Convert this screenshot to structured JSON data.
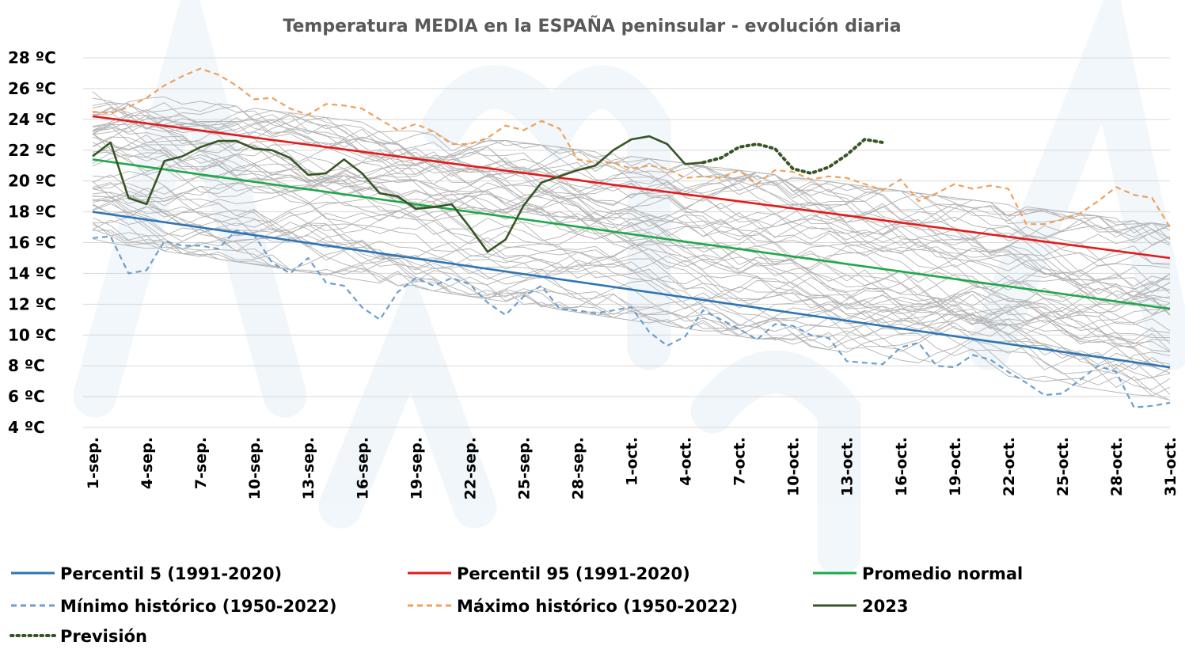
{
  "chart_data": {
    "type": "line",
    "title": "Temperatura MEDIA en la ESPAÑA peninsular - evolución diaria",
    "xlabel": "",
    "ylabel": "",
    "ylim": [
      4,
      28
    ],
    "yticks": [
      {
        "value": 4,
        "label": "4 ºC"
      },
      {
        "value": 6,
        "label": "6 ºC"
      },
      {
        "value": 8,
        "label": "8 ºC"
      },
      {
        "value": 10,
        "label": "10 ºC"
      },
      {
        "value": 12,
        "label": "12 ºC"
      },
      {
        "value": 14,
        "label": "14 ºC"
      },
      {
        "value": 16,
        "label": "16 ºC"
      },
      {
        "value": 18,
        "label": "18 ºC"
      },
      {
        "value": 20,
        "label": "20 ºC"
      },
      {
        "value": 22,
        "label": "22 ºC"
      },
      {
        "value": 24,
        "label": "24 ºC"
      },
      {
        "value": 26,
        "label": "26 ºC"
      },
      {
        "value": 28,
        "label": "28 ºC"
      }
    ],
    "x_ticks": [
      {
        "day": 1,
        "label": "1-sep."
      },
      {
        "day": 4,
        "label": "4-sep."
      },
      {
        "day": 7,
        "label": "7-sep."
      },
      {
        "day": 10,
        "label": "10-sep."
      },
      {
        "day": 13,
        "label": "13-sep."
      },
      {
        "day": 16,
        "label": "16-sep."
      },
      {
        "day": 19,
        "label": "19-sep."
      },
      {
        "day": 22,
        "label": "22-sep."
      },
      {
        "day": 25,
        "label": "25-sep."
      },
      {
        "day": 28,
        "label": "28-sep."
      },
      {
        "day": 31,
        "label": "1-oct."
      },
      {
        "day": 34,
        "label": "4-oct."
      },
      {
        "day": 37,
        "label": "7-oct."
      },
      {
        "day": 40,
        "label": "10-oct."
      },
      {
        "day": 43,
        "label": "13-oct."
      },
      {
        "day": 46,
        "label": "16-oct."
      },
      {
        "day": 49,
        "label": "19-oct."
      },
      {
        "day": 52,
        "label": "22-oct."
      },
      {
        "day": 55,
        "label": "25-oct."
      },
      {
        "day": 58,
        "label": "28-oct."
      },
      {
        "day": 61,
        "label": "31-oct."
      }
    ],
    "grid": true,
    "legend_position": "bottom",
    "series": [
      {
        "name": "Percentil 5 (1991-2020)",
        "color": "#2e75b6",
        "style": "solid",
        "values": [
          [
            1,
            18.0
          ],
          [
            61,
            7.9
          ]
        ]
      },
      {
        "name": "Percentil 95 (1991-2020)",
        "color": "#e31a1c",
        "style": "solid",
        "values": [
          [
            1,
            24.2
          ],
          [
            61,
            15.0
          ]
        ]
      },
      {
        "name": "Promedio normal",
        "color": "#1ea84a",
        "style": "solid",
        "values": [
          [
            1,
            21.4
          ],
          [
            61,
            11.7
          ]
        ]
      },
      {
        "name": "Mínimo histórico (1950-2022)",
        "color": "#6a9fd0",
        "style": "dashed",
        "values": [
          [
            1,
            16.3
          ],
          [
            2,
            16.4
          ],
          [
            3,
            14.0
          ],
          [
            4,
            14.2
          ],
          [
            5,
            16.1
          ],
          [
            6,
            15.8
          ],
          [
            7,
            15.8
          ],
          [
            8,
            15.6
          ],
          [
            9,
            16.8
          ],
          [
            10,
            16.5
          ],
          [
            11,
            14.7
          ],
          [
            12,
            14.0
          ],
          [
            13,
            15.0
          ],
          [
            14,
            13.4
          ],
          [
            15,
            13.2
          ],
          [
            16,
            11.8
          ],
          [
            17,
            11.0
          ],
          [
            18,
            12.8
          ],
          [
            19,
            13.7
          ],
          [
            20,
            13.2
          ],
          [
            21,
            13.7
          ],
          [
            22,
            13.3
          ],
          [
            23,
            12.1
          ],
          [
            24,
            11.3
          ],
          [
            25,
            12.5
          ],
          [
            26,
            13.2
          ],
          [
            27,
            11.7
          ],
          [
            28,
            11.6
          ],
          [
            29,
            11.4
          ],
          [
            30,
            11.6
          ],
          [
            31,
            11.8
          ],
          [
            32,
            10.2
          ],
          [
            33,
            9.3
          ],
          [
            34,
            9.9
          ],
          [
            35,
            11.6
          ],
          [
            36,
            11.0
          ],
          [
            37,
            10.4
          ],
          [
            38,
            9.7
          ],
          [
            39,
            10.7
          ],
          [
            40,
            10.6
          ],
          [
            41,
            10.0
          ],
          [
            42,
            9.8
          ],
          [
            43,
            8.3
          ],
          [
            44,
            8.2
          ],
          [
            45,
            8.1
          ],
          [
            46,
            9.2
          ],
          [
            47,
            9.5
          ],
          [
            48,
            8.0
          ],
          [
            49,
            7.9
          ],
          [
            50,
            8.7
          ],
          [
            51,
            8.4
          ],
          [
            52,
            7.6
          ],
          [
            53,
            6.9
          ],
          [
            54,
            6.1
          ],
          [
            55,
            6.2
          ],
          [
            56,
            7.1
          ],
          [
            57,
            8.0
          ],
          [
            58,
            7.6
          ],
          [
            59,
            5.3
          ],
          [
            60,
            5.4
          ],
          [
            61,
            5.6
          ]
        ]
      },
      {
        "name": "Máximo histórico (1950-2022)",
        "color": "#f0a05a",
        "style": "dashed",
        "values": [
          [
            1,
            24.5
          ],
          [
            2,
            24.4
          ],
          [
            3,
            24.8
          ],
          [
            4,
            25.4
          ],
          [
            5,
            26.2
          ],
          [
            6,
            26.8
          ],
          [
            7,
            27.3
          ],
          [
            8,
            26.9
          ],
          [
            9,
            26.2
          ],
          [
            10,
            25.3
          ],
          [
            11,
            25.4
          ],
          [
            12,
            24.7
          ],
          [
            13,
            24.3
          ],
          [
            14,
            25.0
          ],
          [
            15,
            24.9
          ],
          [
            16,
            24.7
          ],
          [
            17,
            24.0
          ],
          [
            18,
            23.3
          ],
          [
            19,
            23.7
          ],
          [
            20,
            23.2
          ],
          [
            21,
            22.4
          ],
          [
            22,
            22.4
          ],
          [
            23,
            22.8
          ],
          [
            24,
            23.6
          ],
          [
            25,
            23.3
          ],
          [
            26,
            23.9
          ],
          [
            27,
            23.4
          ],
          [
            28,
            21.4
          ],
          [
            29,
            21.2
          ],
          [
            30,
            21.2
          ],
          [
            31,
            20.8
          ],
          [
            32,
            21.0
          ],
          [
            33,
            20.8
          ],
          [
            34,
            20.2
          ],
          [
            35,
            20.3
          ],
          [
            36,
            20.2
          ],
          [
            37,
            20.7
          ],
          [
            38,
            19.8
          ],
          [
            39,
            20.7
          ],
          [
            40,
            20.6
          ],
          [
            41,
            20.1
          ],
          [
            42,
            20.3
          ],
          [
            43,
            20.2
          ],
          [
            44,
            19.8
          ],
          [
            45,
            19.4
          ],
          [
            46,
            20.1
          ],
          [
            47,
            18.7
          ],
          [
            48,
            19.2
          ],
          [
            49,
            19.8
          ],
          [
            50,
            19.5
          ],
          [
            51,
            19.7
          ],
          [
            52,
            19.5
          ],
          [
            53,
            17.2
          ],
          [
            54,
            17.2
          ],
          [
            55,
            17.5
          ],
          [
            56,
            17.9
          ],
          [
            57,
            18.7
          ],
          [
            58,
            19.6
          ],
          [
            59,
            19.1
          ],
          [
            60,
            18.9
          ],
          [
            61,
            17.0
          ]
        ]
      },
      {
        "name": "2023",
        "color": "#375623",
        "style": "solid",
        "values": [
          [
            1,
            21.6
          ],
          [
            2,
            22.5
          ],
          [
            3,
            18.9
          ],
          [
            4,
            18.5
          ],
          [
            5,
            21.3
          ],
          [
            6,
            21.6
          ],
          [
            7,
            22.2
          ],
          [
            8,
            22.6
          ],
          [
            9,
            22.6
          ],
          [
            10,
            22.1
          ],
          [
            11,
            22.0
          ],
          [
            12,
            21.5
          ],
          [
            13,
            20.4
          ],
          [
            14,
            20.5
          ],
          [
            15,
            21.4
          ],
          [
            16,
            20.5
          ],
          [
            17,
            19.2
          ],
          [
            18,
            19.0
          ],
          [
            19,
            18.2
          ],
          [
            20,
            18.3
          ],
          [
            21,
            18.5
          ],
          [
            22,
            17.0
          ],
          [
            23,
            15.4
          ],
          [
            24,
            16.2
          ],
          [
            25,
            18.4
          ],
          [
            26,
            19.9
          ],
          [
            27,
            20.3
          ],
          [
            28,
            20.7
          ],
          [
            29,
            21.0
          ],
          [
            30,
            22.0
          ],
          [
            31,
            22.7
          ],
          [
            32,
            22.9
          ],
          [
            33,
            22.4
          ],
          [
            34,
            21.1
          ],
          [
            35,
            21.2
          ]
        ]
      },
      {
        "name": "Previsión",
        "color": "#375623",
        "style": "dotted",
        "values": [
          [
            35,
            21.2
          ],
          [
            36,
            21.5
          ],
          [
            37,
            22.2
          ],
          [
            38,
            22.4
          ],
          [
            39,
            22.1
          ],
          [
            40,
            20.8
          ],
          [
            41,
            20.5
          ],
          [
            42,
            20.9
          ],
          [
            43,
            21.7
          ],
          [
            44,
            22.7
          ],
          [
            45,
            22.5
          ]
        ]
      }
    ]
  }
}
